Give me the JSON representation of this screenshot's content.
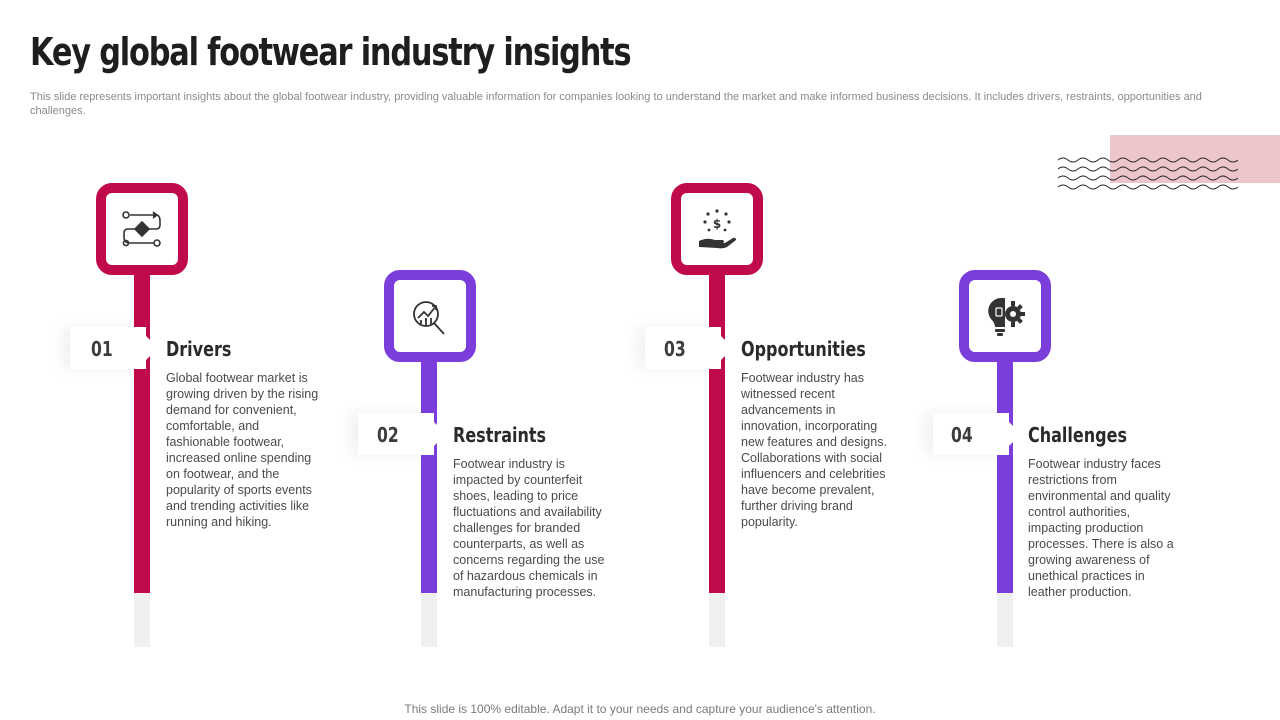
{
  "title": "Key global footwear industry insights",
  "subtitle": "This slide represents important insights about the global footwear industry, providing valuable information for companies looking to understand the market and make informed business decisions. It includes drivers, restraints, opportunities and challenges.",
  "colors": {
    "crimson": "#c10a4b",
    "purple": "#7b3ddc",
    "pink_deco": "#ecc6cb"
  },
  "insights": [
    {
      "number": "01",
      "heading": "Drivers",
      "text": "Global footwear market is growing driven  by the rising demand for convenient, comfortable, and fashionable footwear, increased online spending on footwear, and the popularity of sports events and trending activities like running and hiking.",
      "icon": "flowchart-icon",
      "color": "#c10a4b"
    },
    {
      "number": "02",
      "heading": "Restraints",
      "text": "Footwear industry is impacted by counterfeit shoes, leading to price fluctuations and availability challenges for branded counterparts, as well as concerns regarding  the use of hazardous chemicals in manufacturing processes.",
      "icon": "magnifier-chart-icon",
      "color": "#7b3ddc"
    },
    {
      "number": "03",
      "heading": "Opportunities",
      "text": "Footwear industry has witnessed recent advancements in innovation, incorporating new features and designs. Collaborations with social influencers and celebrities have become prevalent, further driving brand popularity.",
      "icon": "hand-dollar-icon",
      "color": "#c10a4b"
    },
    {
      "number": "04",
      "heading": "Challenges",
      "text": "Footwear industry faces restrictions from environmental  and quality control authorities, impacting production processes. There is also a growing awareness of unethical practices in leather production.",
      "icon": "lightbulb-gear-icon",
      "color": "#7b3ddc"
    }
  ],
  "footer": "This slide is 100% editable. Adapt it to your needs and capture your audience's attention."
}
